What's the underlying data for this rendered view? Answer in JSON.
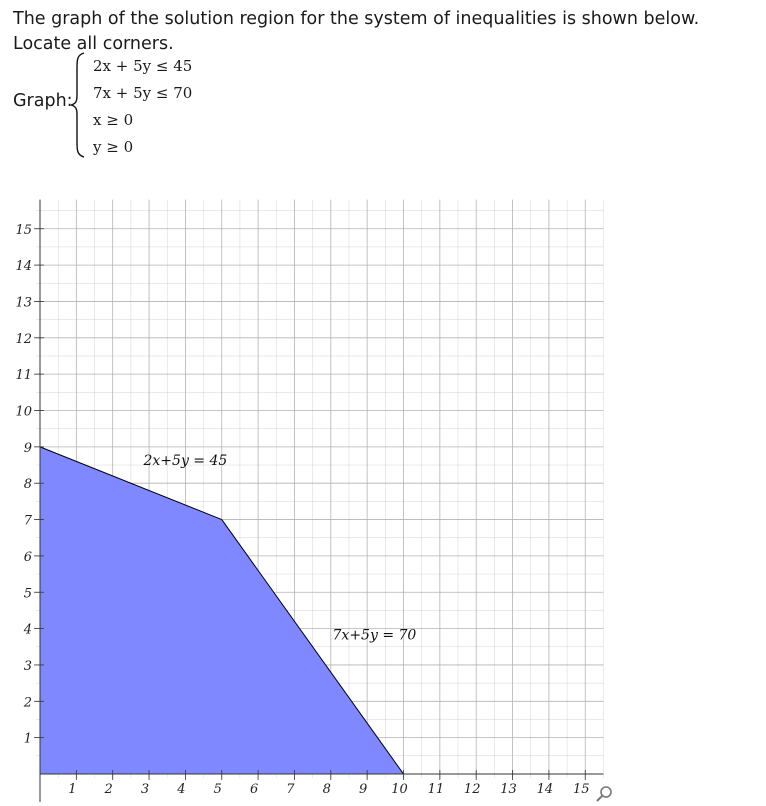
{
  "prompt": {
    "line1": "The graph of the solution region for the system of inequalities is shown below.",
    "line2": "Locate all corners."
  },
  "graph_label": "Graph:",
  "inequalities": [
    "2x + 5y ≤ 45",
    "7x + 5y ≤ 70",
    "x ≥ 0",
    "y ≥ 0"
  ],
  "colors": {
    "region": "#8088ff",
    "grid": "#b3b3b3",
    "boundary": "#000000"
  },
  "icons": {
    "zoom": "magnifier-icon"
  },
  "chart_data": {
    "type": "area",
    "title": "",
    "xlabel": "",
    "ylabel": "",
    "xlim": [
      0,
      15.5
    ],
    "ylim": [
      0,
      15.8
    ],
    "grid": true,
    "xticks": [
      1,
      2,
      3,
      4,
      5,
      6,
      7,
      8,
      9,
      10,
      11,
      12,
      13,
      14,
      15
    ],
    "yticks": [
      1,
      2,
      3,
      4,
      5,
      6,
      7,
      8,
      9,
      10,
      11,
      12,
      13,
      14,
      15
    ],
    "region": {
      "x": [
        0,
        0,
        5,
        10
      ],
      "y": [
        0,
        9,
        7,
        0
      ]
    },
    "lines": [
      {
        "label": "2x+5y = 45",
        "x": [
          0,
          5
        ],
        "y": [
          9,
          7
        ],
        "label_at": [
          4,
          8.5
        ]
      },
      {
        "label": "7x+5y = 70",
        "x": [
          5,
          10
        ],
        "y": [
          7,
          0
        ],
        "label_at": [
          9.2,
          3.7
        ]
      }
    ]
  }
}
